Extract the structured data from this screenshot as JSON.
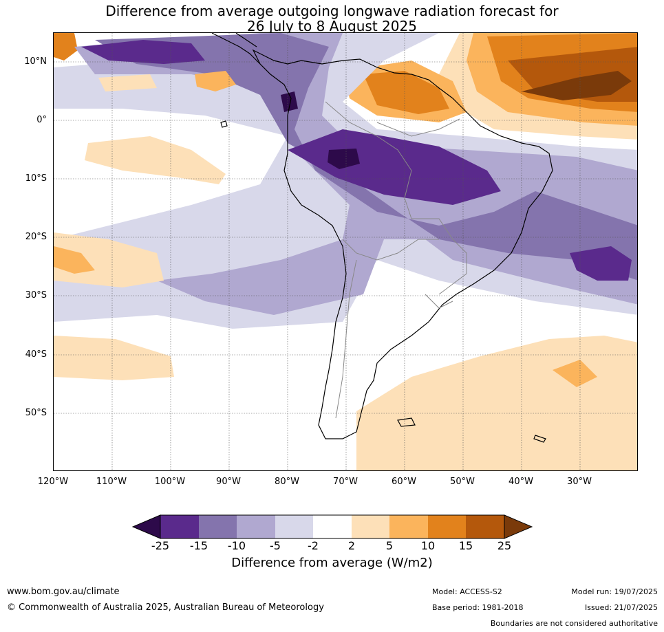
{
  "title": {
    "line1": "Difference from average outgoing longwave radiation forecast for",
    "line2": "26 July to 8 August 2025"
  },
  "map": {
    "lat_labels": [
      "10°N",
      "0°",
      "10°S",
      "20°S",
      "30°S",
      "40°S",
      "50°S"
    ],
    "lon_labels": [
      "120°W",
      "110°W",
      "100°W",
      "90°W",
      "80°W",
      "70°W",
      "60°W",
      "50°W",
      "40°W",
      "30°W"
    ],
    "colors": {
      "n25": "#2d0a4a",
      "n15": "#5a2a8c",
      "n10": "#8474ad",
      "n5": "#b0a8d0",
      "n2": "#d8d8ea",
      "p2": "#fde0b8",
      "p5": "#fbb45c",
      "p10": "#e2821c",
      "p15": "#b4580c",
      "p25": "#7a3a0a",
      "coast": "#000000",
      "border": "#888888",
      "grid": "#555555"
    }
  },
  "colorbar": {
    "ticks": [
      "-25",
      "-15",
      "-10",
      "-5",
      "-2",
      "2",
      "5",
      "10",
      "15",
      "25"
    ],
    "label": "Difference from average (W/m2)"
  },
  "footer": {
    "url": "www.bom.gov.au/climate",
    "copyright": "© Commonwealth of Australia 2025, Australian Bureau of Meteorology",
    "model": "Model: ACCESS-S2",
    "base_period": "Base period: 1981-2018",
    "model_run": "Model run: 19/07/2025",
    "issued": "Issued: 21/07/2025",
    "boundaries": "Boundaries are not considered authoritative"
  }
}
